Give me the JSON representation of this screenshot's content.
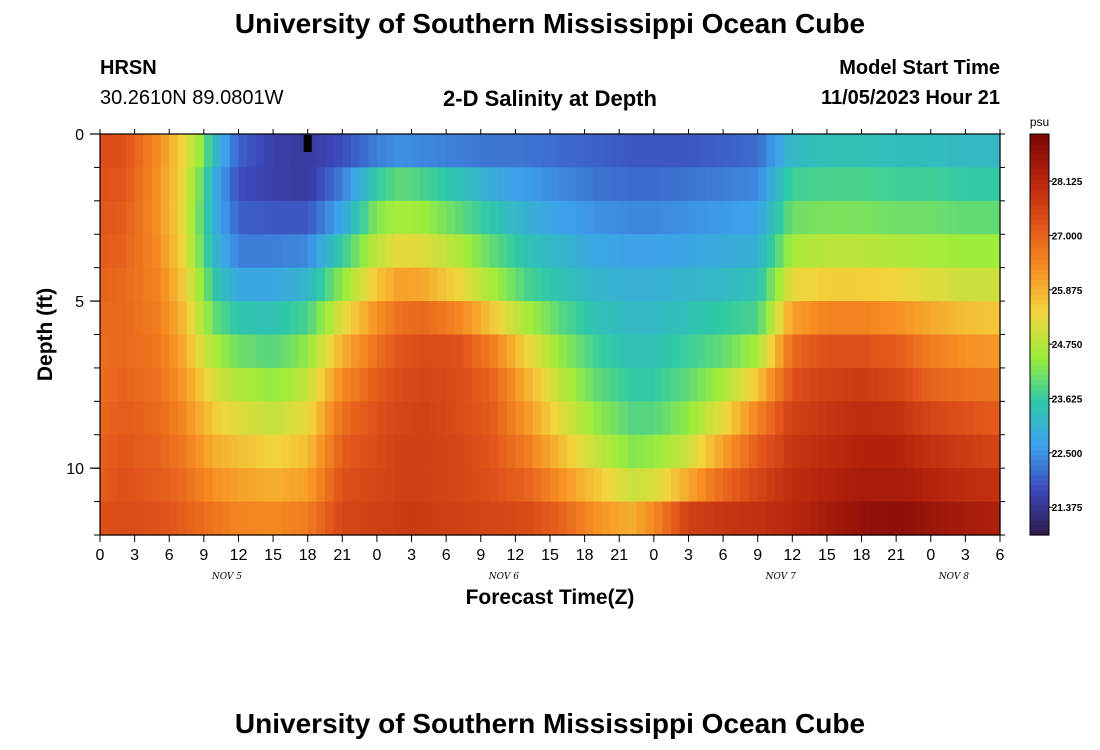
{
  "header": {
    "title": "University of Southern Mississippi Ocean Cube",
    "station_id": "HRSN",
    "station_coords": "30.2610N  89.0801W",
    "plot_title": "2-D Salinity at Depth",
    "model_start_label": "Model Start Time",
    "model_start_value": "11/05/2023 Hour 21"
  },
  "footer": {
    "title": "University of Southern Mississippi Ocean Cube"
  },
  "chart_data": {
    "type": "heatmap",
    "title": "2-D Salinity at Depth",
    "xlabel": "Forecast Time(Z)",
    "ylabel": "Depth (ft)",
    "x_tick_labels": [
      "0",
      "3",
      "6",
      "9",
      "12",
      "15",
      "18",
      "21",
      "0",
      "3",
      "6",
      "9",
      "12",
      "15",
      "18",
      "21",
      "0",
      "3",
      "6",
      "9",
      "12",
      "15",
      "18",
      "21",
      "0",
      "3",
      "6"
    ],
    "x_range_hours": [
      0,
      78
    ],
    "date_labels": [
      {
        "label": "NOV 5",
        "hour": 11
      },
      {
        "label": "NOV 6",
        "hour": 35
      },
      {
        "label": "NOV 7",
        "hour": 59
      },
      {
        "label": "NOV 8",
        "hour": 74
      }
    ],
    "y_tick_labels": [
      "0",
      "5",
      "10"
    ],
    "y_tick_values": [
      0,
      5,
      10
    ],
    "ylim": [
      0,
      12
    ],
    "depth_levels": 12,
    "colorbar": {
      "unit": "psu",
      "range": [
        20.8,
        29.1
      ],
      "tick_labels": [
        "28.125",
        "27.000",
        "25.875",
        "24.750",
        "23.625",
        "22.500",
        "21.375"
      ],
      "tick_values": [
        28.125,
        27.0,
        25.875,
        24.75,
        23.625,
        22.5,
        21.375
      ],
      "colors": [
        "#2f1b4a",
        "#3c46b8",
        "#3da0ee",
        "#2ec9a8",
        "#9ded3a",
        "#f2d53d",
        "#f78e22",
        "#e0521a",
        "#b5230c",
        "#7a0606"
      ]
    },
    "profile_hours": [
      0,
      2,
      5,
      7,
      8.5,
      10,
      12,
      15,
      18,
      21,
      24,
      26,
      28,
      31,
      34,
      37,
      40,
      43,
      46,
      48,
      51,
      54,
      57,
      60,
      63,
      66,
      69,
      72,
      75,
      78
    ],
    "profile_values": [
      [
        27.4,
        27.3,
        27.2,
        27.1,
        27.0,
        26.9,
        26.8,
        26.8,
        26.9,
        27.0,
        27.1,
        27.3
      ],
      [
        27.3,
        27.2,
        27.1,
        27.0,
        26.9,
        26.9,
        26.9,
        27.0,
        27.1,
        27.2,
        27.3,
        27.4
      ],
      [
        26.4,
        26.3,
        26.3,
        26.4,
        26.5,
        26.6,
        26.7,
        26.8,
        26.9,
        27.0,
        27.1,
        27.3
      ],
      [
        25.5,
        25.4,
        25.4,
        25.5,
        25.7,
        25.9,
        26.1,
        26.3,
        26.5,
        26.7,
        26.9,
        27.1
      ],
      [
        24.6,
        24.3,
        24.2,
        24.3,
        24.6,
        24.9,
        25.3,
        25.7,
        26.0,
        26.3,
        26.6,
        26.9
      ],
      [
        23.2,
        22.9,
        22.9,
        23.1,
        23.5,
        24.0,
        24.6,
        25.1,
        25.5,
        25.9,
        26.3,
        26.7
      ],
      [
        22.0,
        21.8,
        22.0,
        22.3,
        22.8,
        23.5,
        24.1,
        24.7,
        25.2,
        25.7,
        26.1,
        26.5
      ],
      [
        21.6,
        21.6,
        21.9,
        22.3,
        22.8,
        23.4,
        23.9,
        24.4,
        24.9,
        25.4,
        25.9,
        26.4
      ],
      [
        21.5,
        21.5,
        21.9,
        22.4,
        23.1,
        23.8,
        24.4,
        24.9,
        25.3,
        25.7,
        26.1,
        26.6
      ],
      [
        21.8,
        22.3,
        22.8,
        23.6,
        24.4,
        25.2,
        25.9,
        26.4,
        26.8,
        27.1,
        27.3,
        27.5
      ],
      [
        22.3,
        23.6,
        24.3,
        24.9,
        25.6,
        26.3,
        26.8,
        27.1,
        27.3,
        27.4,
        27.5,
        27.6
      ],
      [
        22.5,
        24.0,
        24.6,
        25.3,
        26.1,
        26.8,
        27.2,
        27.4,
        27.5,
        27.6,
        27.6,
        27.7
      ],
      [
        22.4,
        23.8,
        24.5,
        25.2,
        26.0,
        26.9,
        27.4,
        27.5,
        27.6,
        27.6,
        27.6,
        27.7
      ],
      [
        22.3,
        23.4,
        24.0,
        24.7,
        25.4,
        26.5,
        27.3,
        27.4,
        27.4,
        27.5,
        27.5,
        27.6
      ],
      [
        22.2,
        22.9,
        23.5,
        24.0,
        24.6,
        25.6,
        26.6,
        27.0,
        27.1,
        27.2,
        27.3,
        27.5
      ],
      [
        22.2,
        22.6,
        23.0,
        23.4,
        23.8,
        24.6,
        25.4,
        25.9,
        26.2,
        26.6,
        27.0,
        27.4
      ],
      [
        22.1,
        22.4,
        22.7,
        23.1,
        23.4,
        23.9,
        24.4,
        24.8,
        25.2,
        25.7,
        26.3,
        27.0
      ],
      [
        22.0,
        22.2,
        22.5,
        22.8,
        23.1,
        23.4,
        23.7,
        24.0,
        24.4,
        24.9,
        25.6,
        26.3
      ],
      [
        21.9,
        22.1,
        22.4,
        22.7,
        23.0,
        23.2,
        23.4,
        23.6,
        23.9,
        24.3,
        25.0,
        25.9
      ],
      [
        21.9,
        22.1,
        22.4,
        22.7,
        23.0,
        23.2,
        23.4,
        23.6,
        23.9,
        24.4,
        25.1,
        26.4
      ],
      [
        21.9,
        22.2,
        22.5,
        22.8,
        23.1,
        23.4,
        23.7,
        24.0,
        24.4,
        25.0,
        26.0,
        27.6
      ],
      [
        22.0,
        22.3,
        22.6,
        22.9,
        23.2,
        23.6,
        24.0,
        24.6,
        25.3,
        26.1,
        26.9,
        27.8
      ],
      [
        22.1,
        22.4,
        22.7,
        23.0,
        23.4,
        23.8,
        24.6,
        25.6,
        26.5,
        27.1,
        27.5,
        27.9
      ],
      [
        23.2,
        23.7,
        24.1,
        24.6,
        25.3,
        26.1,
        26.9,
        27.3,
        27.6,
        27.8,
        28.0,
        28.1
      ],
      [
        23.4,
        23.8,
        24.2,
        24.8,
        25.5,
        26.5,
        27.3,
        27.6,
        27.8,
        28.0,
        28.2,
        28.4
      ],
      [
        23.4,
        23.8,
        24.2,
        24.8,
        25.5,
        26.5,
        27.3,
        27.7,
        28.0,
        28.2,
        28.4,
        28.7
      ],
      [
        23.3,
        23.7,
        24.1,
        24.7,
        25.4,
        26.3,
        27.1,
        27.5,
        27.9,
        28.2,
        28.4,
        28.8
      ],
      [
        23.3,
        23.7,
        24.1,
        24.6,
        25.2,
        26.0,
        26.6,
        27.0,
        27.5,
        27.9,
        28.2,
        28.6
      ],
      [
        23.2,
        23.6,
        24.0,
        24.5,
        25.0,
        25.7,
        26.3,
        26.8,
        27.3,
        27.7,
        28.0,
        28.4
      ],
      [
        23.2,
        23.6,
        24.0,
        24.5,
        25.0,
        25.6,
        26.2,
        26.7,
        27.1,
        27.5,
        27.9,
        28.3
      ]
    ]
  }
}
